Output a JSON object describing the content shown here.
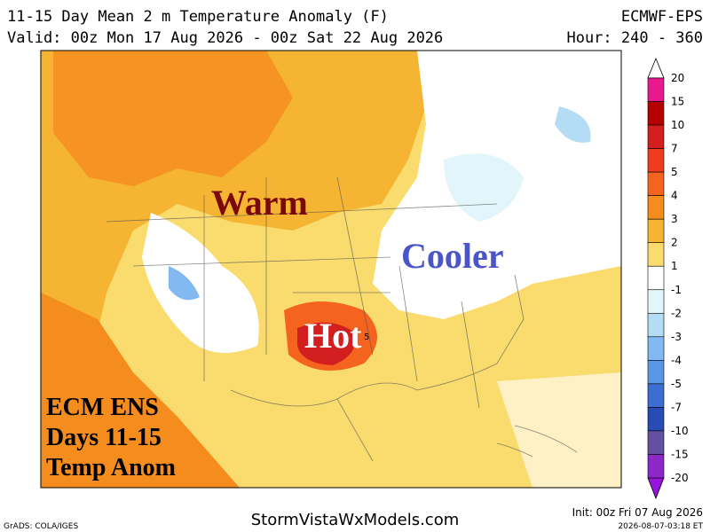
{
  "header": {
    "title": "11-15 Day Mean 2 m Temperature Anomaly (F)",
    "model": "ECMWF-EPS",
    "valid": "Valid: 00z Mon 17 Aug 2026 - 00z Sat 22 Aug 2026",
    "hour": "Hour: 240 - 360"
  },
  "map": {
    "labels": [
      "Warm",
      "Cooler",
      "Hot",
      "5"
    ],
    "overlay": [
      "ECM ENS",
      "Days 11-15",
      "Temp Anom"
    ]
  },
  "colorbar": {
    "levels": [
      20,
      15,
      10,
      7,
      5,
      4,
      3,
      2,
      1,
      -1,
      -2,
      -3,
      -4,
      -5,
      -7,
      -10,
      -15,
      -20
    ],
    "colors": [
      "#e8198e",
      "#b40000",
      "#d21e1e",
      "#f03c1e",
      "#f5641e",
      "#f58c1e",
      "#f5b432",
      "#fadc6e",
      "#ffffff",
      "#e1f5fa",
      "#b4dcf5",
      "#82b9f0",
      "#5a96e6",
      "#3c6ed2",
      "#284bb4",
      "#6450a0",
      "#8c28c8"
    ]
  },
  "footer": {
    "software": "GrADS: COLA/IGES",
    "site": "StormVistaWxModels.com",
    "init": "Init: 00z Fri 07 Aug 2026",
    "stamp": "2026-08-07-03:18 ET"
  }
}
